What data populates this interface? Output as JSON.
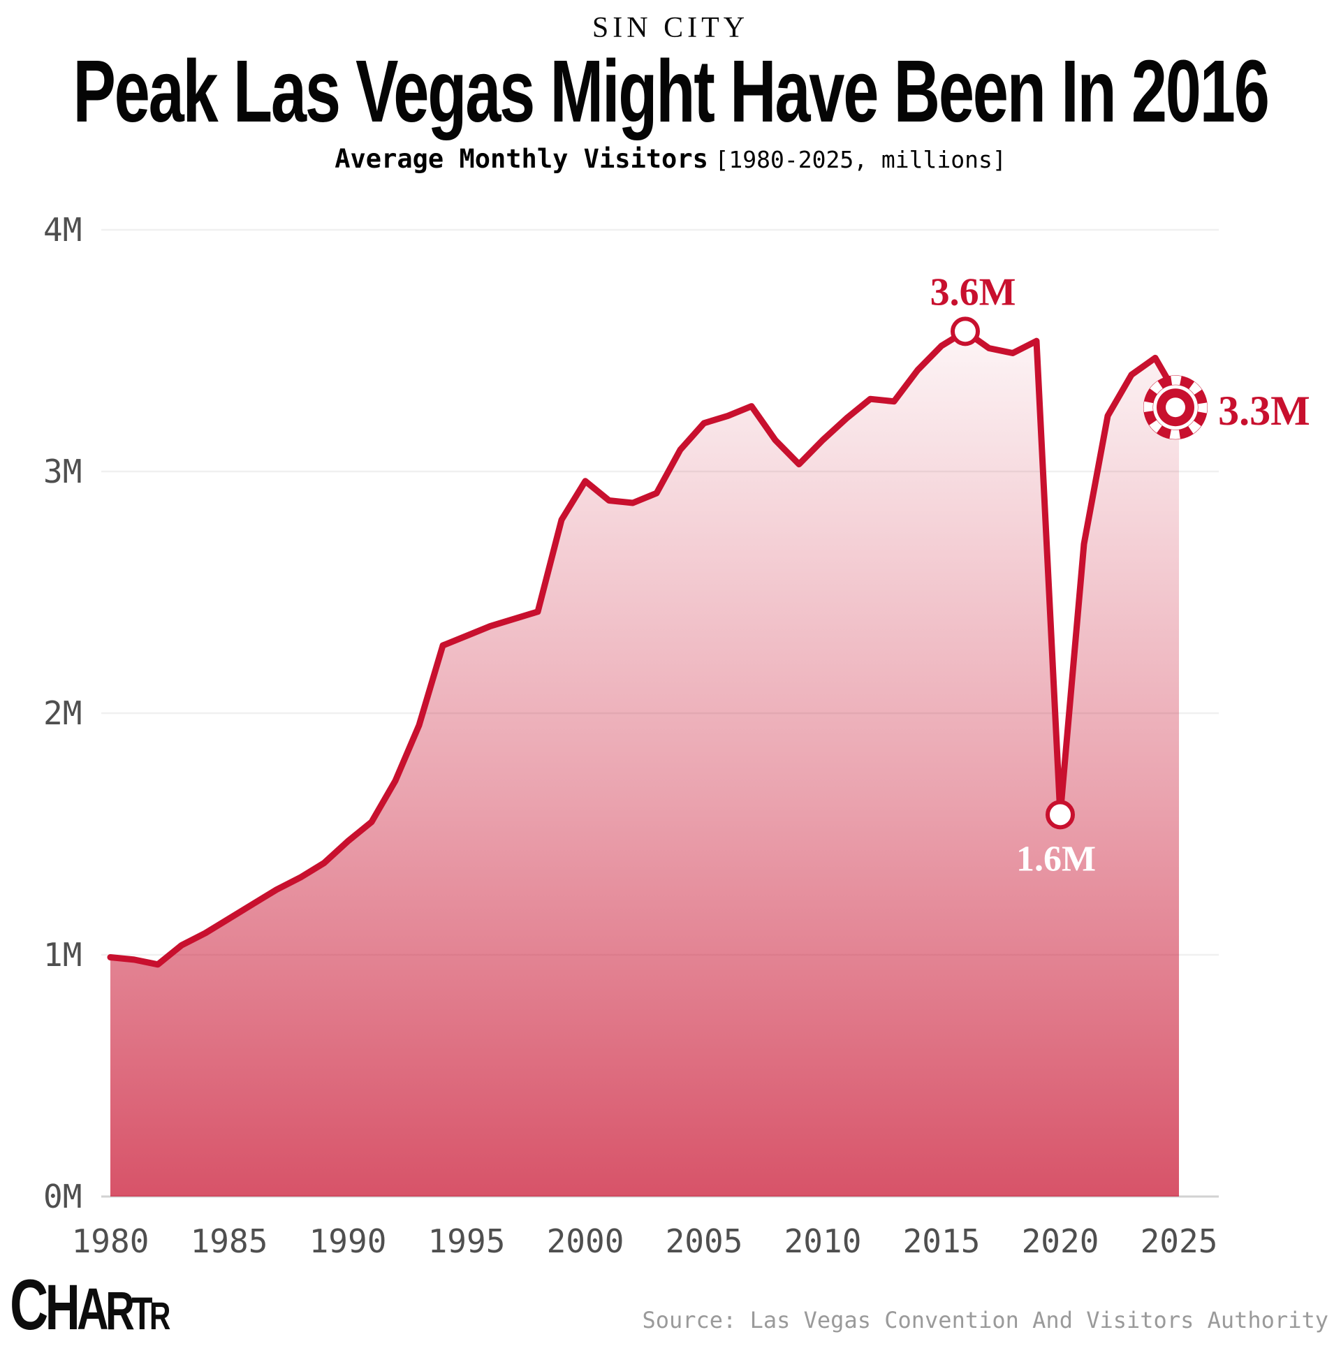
{
  "header": {
    "kicker": "SIN CITY",
    "title": "Peak Las Vegas Might Have Been In 2016",
    "subtitle_bold": "Average Monthly Visitors",
    "subtitle_note": "[1980-2025, millions]"
  },
  "footer": {
    "logo_letters": [
      "C",
      "H",
      "A",
      "R",
      "T",
      "R"
    ],
    "source": "Source: Las Vegas Convention And Visitors Authority"
  },
  "colors": {
    "line": "#c8102e",
    "area_base": "#c8102e",
    "grid": "#f0f0f0",
    "baseline": "#d2d2d2",
    "axis_text": "#4f4f4f",
    "source_text": "#9a9a9a",
    "annotation_red": "#c8102e",
    "annotation_white": "#ffffff",
    "title_text": "#050505"
  },
  "chart_data": {
    "type": "area",
    "title": "Peak Las Vegas Might Have Been In 2016",
    "subtitle": "Average Monthly Visitors [1980-2025, millions]",
    "xlabel": "",
    "ylabel": "",
    "xlim": [
      1980,
      2025
    ],
    "ylim": [
      0,
      4
    ],
    "grid": "horizontal",
    "legend": "none",
    "x": [
      1980,
      1981,
      1982,
      1983,
      1984,
      1985,
      1986,
      1987,
      1988,
      1989,
      1990,
      1991,
      1992,
      1993,
      1994,
      1995,
      1996,
      1997,
      1998,
      1999,
      2000,
      2001,
      2002,
      2003,
      2004,
      2005,
      2006,
      2007,
      2008,
      2009,
      2010,
      2011,
      2012,
      2013,
      2014,
      2015,
      2016,
      2017,
      2018,
      2019,
      2020,
      2021,
      2022,
      2023,
      2024,
      2025
    ],
    "values": [
      0.99,
      0.98,
      0.96,
      1.04,
      1.09,
      1.15,
      1.21,
      1.27,
      1.32,
      1.38,
      1.47,
      1.55,
      1.72,
      1.95,
      2.28,
      2.32,
      2.36,
      2.39,
      2.42,
      2.8,
      2.96,
      2.88,
      2.87,
      2.91,
      3.09,
      3.2,
      3.23,
      3.27,
      3.13,
      3.03,
      3.13,
      3.22,
      3.3,
      3.29,
      3.42,
      3.52,
      3.58,
      3.51,
      3.49,
      3.54,
      1.58,
      2.7,
      3.23,
      3.4,
      3.47,
      3.3
    ],
    "yticks": [
      {
        "value": 0,
        "label": "0M"
      },
      {
        "value": 1,
        "label": "1M"
      },
      {
        "value": 2,
        "label": "2M"
      },
      {
        "value": 3,
        "label": "3M"
      },
      {
        "value": 4,
        "label": "4M"
      }
    ],
    "xticks": [
      {
        "value": 1980,
        "label": "1980"
      },
      {
        "value": 1985,
        "label": "1985"
      },
      {
        "value": 1990,
        "label": "1990"
      },
      {
        "value": 1995,
        "label": "1995"
      },
      {
        "value": 2000,
        "label": "2000"
      },
      {
        "value": 2005,
        "label": "2005"
      },
      {
        "value": 2010,
        "label": "2010"
      },
      {
        "value": 2015,
        "label": "2015"
      },
      {
        "value": 2020,
        "label": "2020"
      },
      {
        "value": 2025,
        "label": "2025"
      }
    ],
    "annotations": [
      {
        "year": 2016,
        "value": 3.58,
        "label": "3.6M",
        "marker": "circle",
        "label_position": "above",
        "label_color": "#c8102e"
      },
      {
        "year": 2020,
        "value": 1.58,
        "label": "1.6M",
        "marker": "circle",
        "label_position": "below",
        "label_color": "#ffffff"
      },
      {
        "year": 2025,
        "value": 3.3,
        "label": "3.3M",
        "marker": "casino-chip",
        "label_position": "right",
        "label_color": "#c8102e"
      }
    ]
  }
}
